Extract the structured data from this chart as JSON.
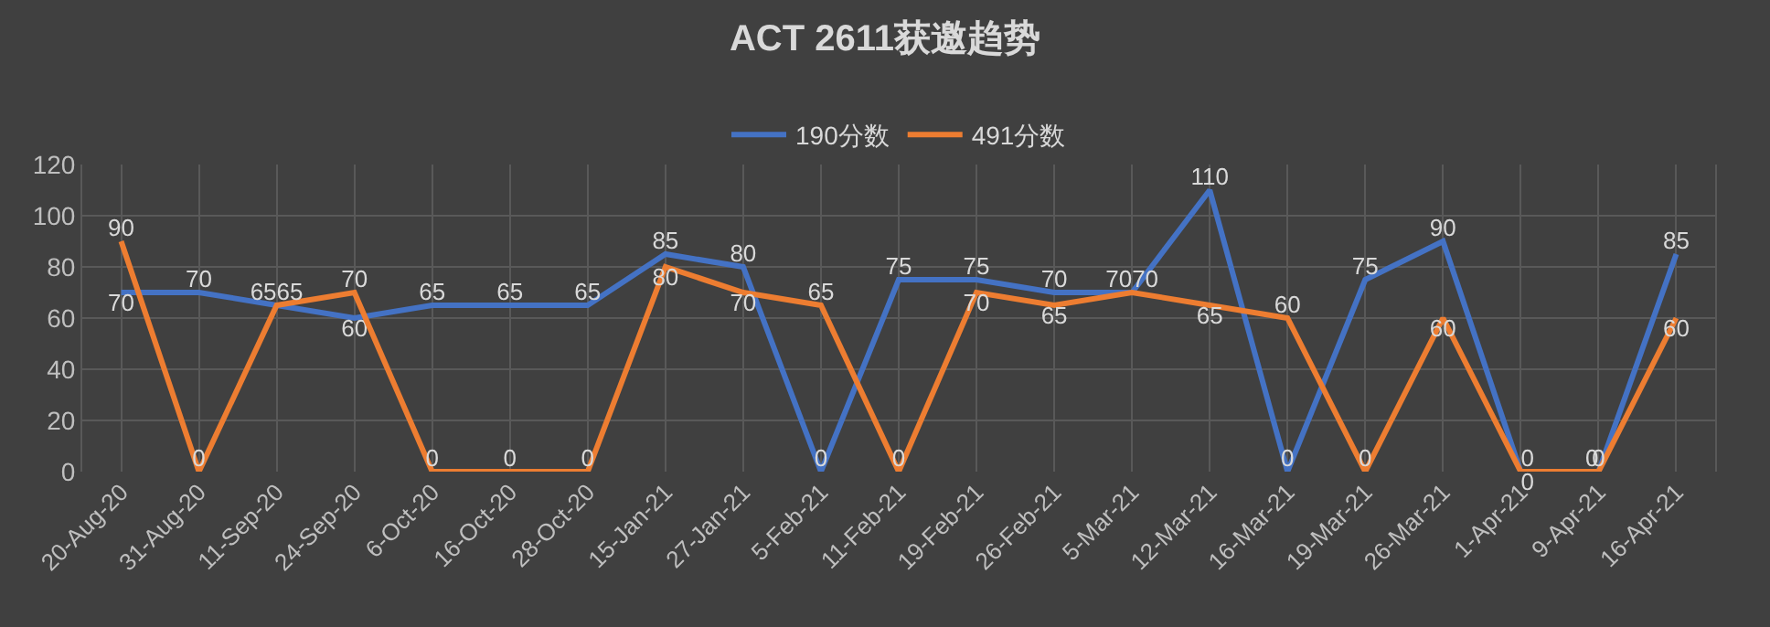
{
  "chart_data": {
    "type": "line",
    "title": "ACT 2611获邀趋势",
    "categories": [
      "20-Aug-20",
      "31-Aug-20",
      "11-Sep-20",
      "24-Sep-20",
      "6-Oct-20",
      "16-Oct-20",
      "28-Oct-20",
      "15-Jan-21",
      "27-Jan-21",
      "5-Feb-21",
      "11-Feb-21",
      "19-Feb-21",
      "26-Feb-21",
      "5-Mar-21",
      "12-Mar-21",
      "16-Mar-21",
      "19-Mar-21",
      "26-Mar-21",
      "1-Apr-21",
      "9-Apr-21",
      "16-Apr-21"
    ],
    "series": [
      {
        "name": "190分数",
        "color": "#4472c4",
        "values": [
          70,
          70,
          65,
          60,
          65,
          65,
          65,
          85,
          80,
          0,
          75,
          75,
          70,
          70,
          110,
          0,
          75,
          90,
          0,
          0,
          85
        ]
      },
      {
        "name": "491分数",
        "color": "#ed7d31",
        "values": [
          90,
          0,
          65,
          70,
          0,
          0,
          0,
          80,
          70,
          65,
          0,
          70,
          65,
          70,
          65,
          60,
          0,
          60,
          0,
          0,
          60
        ]
      }
    ],
    "ylim": [
      0,
      120
    ],
    "yticks": [
      0,
      20,
      40,
      60,
      80,
      100,
      120
    ],
    "grid": true,
    "legend": "top",
    "marker": "none",
    "line_style": "solid",
    "data_labels": true
  }
}
